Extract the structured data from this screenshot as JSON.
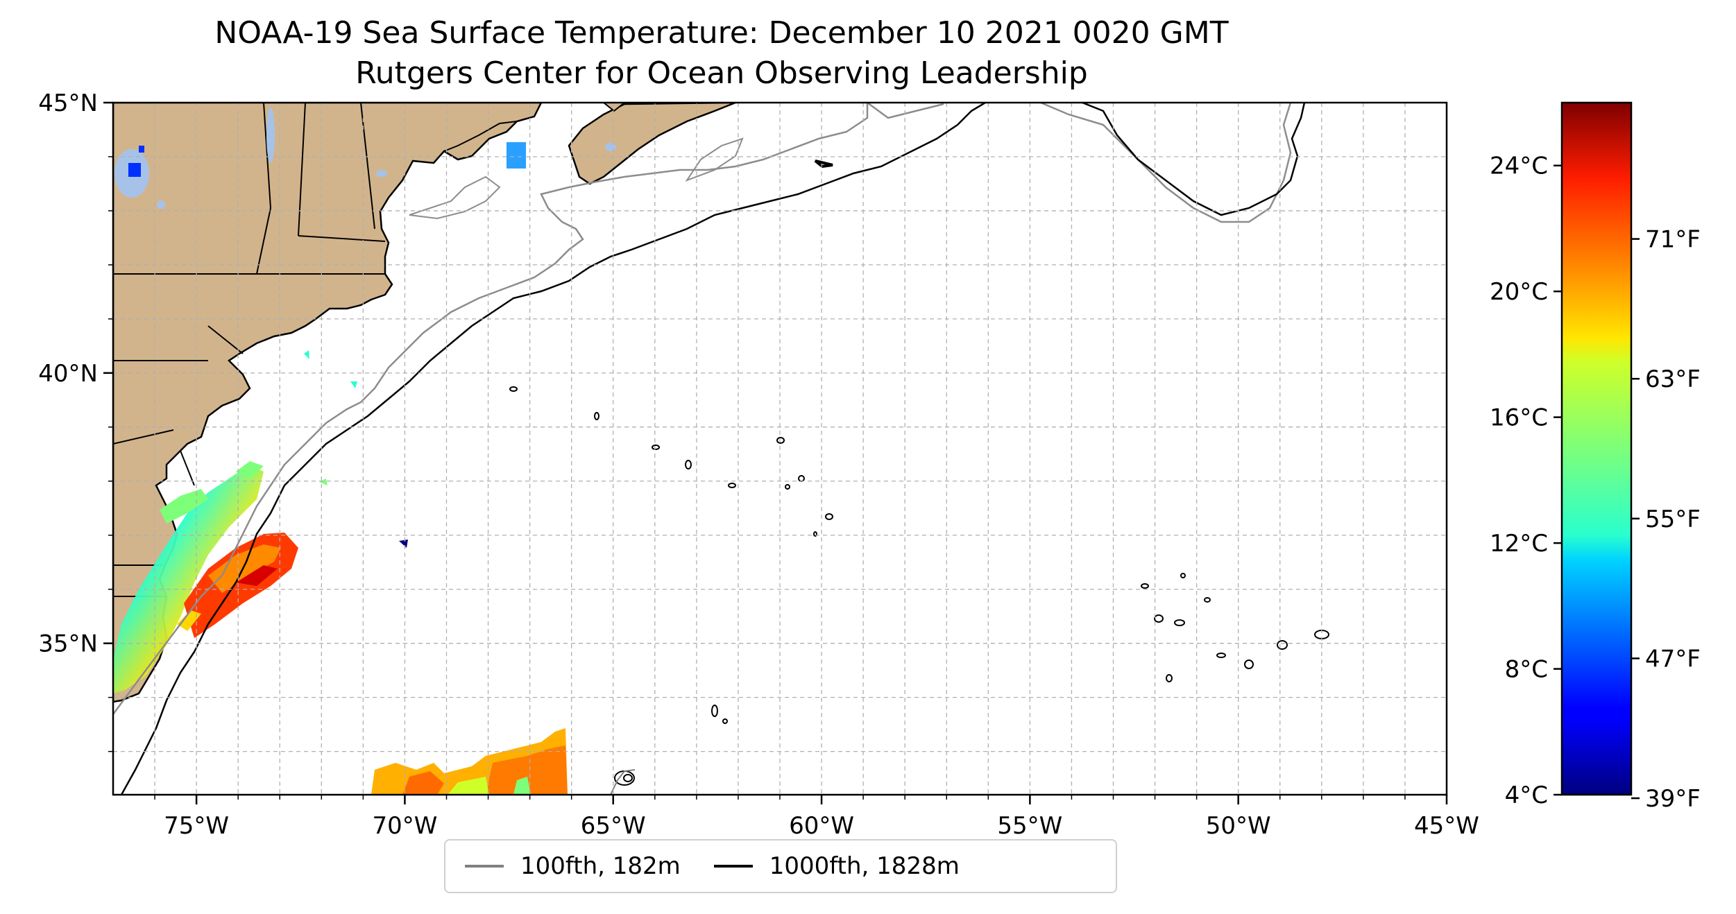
{
  "title": "NOAA-19 Sea Surface Temperature: December 10 2021 0020 GMT",
  "subtitle": "Rutgers Center for Ocean Observing Leadership",
  "map": {
    "lon_ticks": [
      "75°W",
      "70°W",
      "65°W",
      "60°W",
      "55°W",
      "50°W",
      "45°W"
    ],
    "lat_ticks": [
      "45°N",
      "40°N",
      "35°N"
    ],
    "extent": {
      "lon_min": -77,
      "lon_max": -45,
      "lat_min": 32.2,
      "lat_max": 45
    },
    "land_color": "#d2b48c",
    "lake_color": "#a6c2e8",
    "grid": true
  },
  "colorbar": {
    "celsius_ticks": [
      "24°C",
      "20°C",
      "16°C",
      "12°C",
      "8°C",
      "4°C"
    ],
    "fahrenheit_ticks": [
      "71°F",
      "63°F",
      "55°F",
      "47°F",
      "39°F"
    ],
    "colormap": "jet",
    "range_c": [
      4,
      26
    ]
  },
  "legend": {
    "items": [
      {
        "label": "100fth, 182m",
        "color": "#808080"
      },
      {
        "label": "1000fth, 1828m",
        "color": "#000000"
      }
    ]
  }
}
